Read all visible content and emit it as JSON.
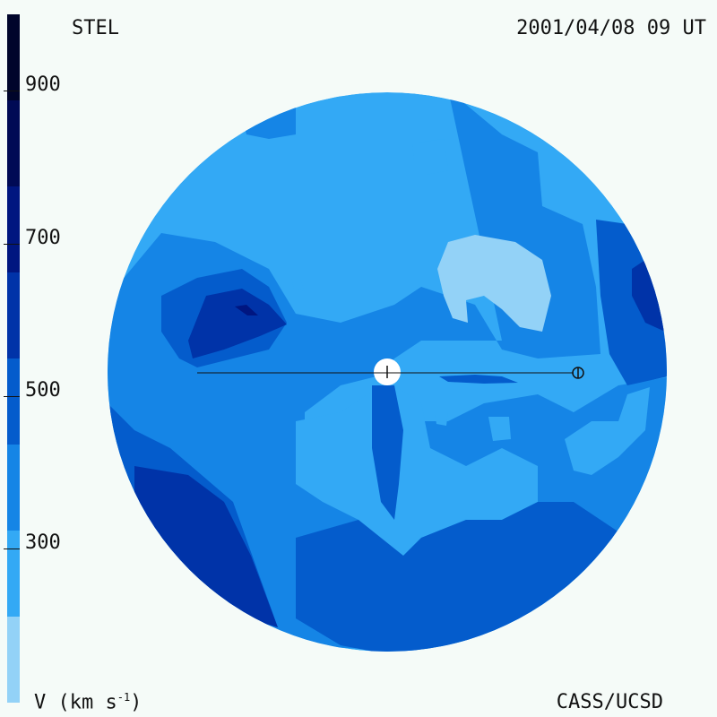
{
  "header": {
    "left_label": "STEL",
    "datetime": "2001/04/08 09 UT"
  },
  "footer": {
    "units_label": "V (km s",
    "units_exp": "-1",
    "units_close": ")",
    "credit": "CASS/UCSD"
  },
  "colorbar": {
    "ticks": [
      "900",
      "700",
      "500",
      "300"
    ],
    "colors_bottom_to_top": [
      "#93d2f7",
      "#33a9f5",
      "#1585e6",
      "#045ccc",
      "#0033a8",
      "#001680",
      "#000a55",
      "#00052b"
    ]
  },
  "map": {
    "background_color": "#33a9f5",
    "sun_color": "#ffffff",
    "line_color": "#111111"
  }
}
